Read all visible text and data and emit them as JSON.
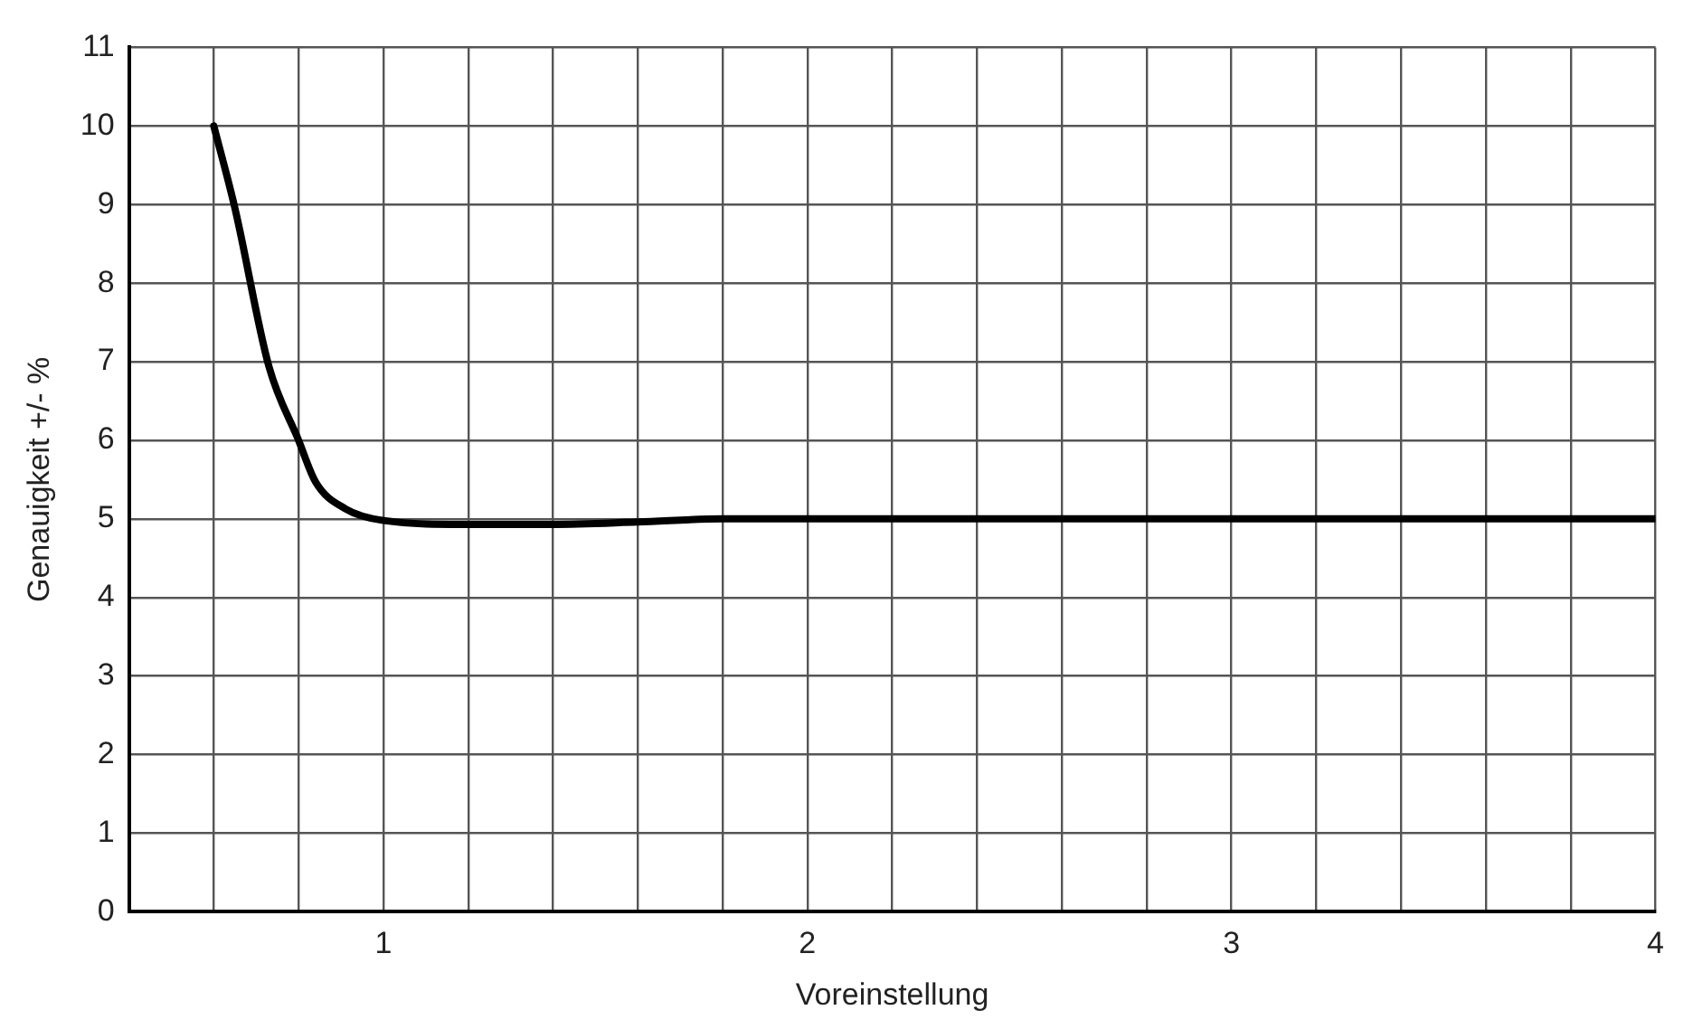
{
  "chart_data": {
    "type": "line",
    "xlabel": "Voreinstellung",
    "ylabel": "Genauigkeit +/- %",
    "x": [
      0.6,
      0.65,
      0.73,
      0.8,
      0.84,
      0.91,
      1.0,
      1.2,
      1.4,
      1.6,
      1.8,
      2,
      3,
      4
    ],
    "series": [
      {
        "color": "#000000",
        "values": [
          10,
          8.95,
          6.94,
          6,
          5.47,
          5.13,
          4.98,
          4.93,
          4.93,
          4.96,
          5,
          5,
          5,
          5
        ]
      }
    ],
    "xlim": [
      0.4,
      4
    ],
    "xticks": [
      {
        "value": 0.4,
        "label": null
      },
      {
        "value": 0.6,
        "label": null
      },
      {
        "value": 0.8,
        "label": null
      },
      1,
      {
        "value": 1.2,
        "label": null
      },
      {
        "value": 1.4,
        "label": null
      },
      {
        "value": 1.6,
        "label": null
      },
      {
        "value": 1.8,
        "label": null
      },
      2,
      {
        "value": 2.2,
        "label": null
      },
      {
        "value": 2.4,
        "label": null
      },
      {
        "value": 2.6,
        "label": null
      },
      {
        "value": 2.8,
        "label": null
      },
      3,
      {
        "value": 3.2,
        "label": null
      },
      {
        "value": 3.4,
        "label": null
      },
      {
        "value": 3.6,
        "label": null
      },
      {
        "value": 3.8,
        "label": null
      },
      4
    ],
    "ylim": [
      0,
      11
    ],
    "yticks": [
      0,
      1,
      2,
      3,
      4,
      5,
      6,
      7,
      8,
      9,
      10,
      11
    ],
    "grid": true,
    "legend": false,
    "marker": "none",
    "line_style": "solid"
  }
}
